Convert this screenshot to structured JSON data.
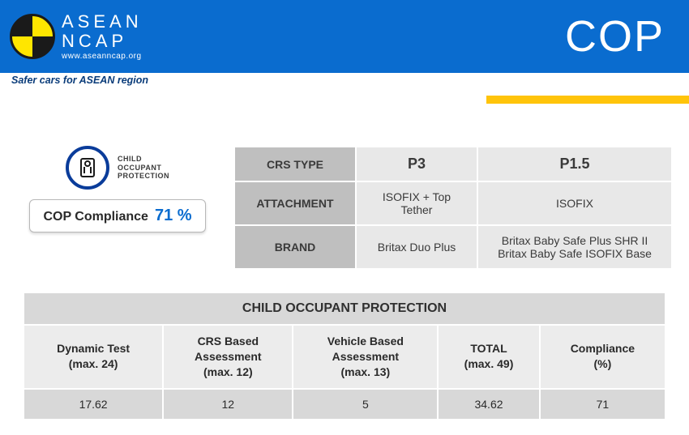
{
  "header": {
    "brand_line1": "ASEAN",
    "brand_line2": "NCAP",
    "url": "www.aseanncap.org",
    "tagline": "Safer cars  for ASEAN region",
    "title": "COP",
    "colors": {
      "header_bg": "#0a6ccf",
      "yellow_strip": "#ffc40a"
    }
  },
  "cop_badge": {
    "icon_label_l1": "CHILD",
    "icon_label_l2": "OCCUPANT",
    "icon_label_l3": "PROTECTION",
    "compliance_label": "COP Compliance",
    "compliance_value": "71 %"
  },
  "crs_table": {
    "rows": [
      {
        "label": "CRS TYPE",
        "c1": "P3",
        "c2": "P1.5",
        "strong": true
      },
      {
        "label": "ATTACHMENT",
        "c1": "ISOFIX + Top Tether",
        "c2": "ISOFIX",
        "strong": false
      },
      {
        "label": "BRAND",
        "c1": "Britax Duo Plus",
        "c2": "Britax Baby Safe Plus SHR II\nBritax Baby Safe ISOFIX Base",
        "strong": false
      }
    ],
    "colors": {
      "rowhdr_bg": "#bfbfbf",
      "cell_bg": "#e8e8e8"
    }
  },
  "bottom_table": {
    "title": "CHILD OCCUPANT PROTECTION",
    "columns": [
      "Dynamic Test\n(max. 24)",
      "CRS Based\nAssessment\n(max. 12)",
      "Vehicle Based\nAssessment\n(max. 13)",
      "TOTAL\n(max. 49)",
      "Compliance\n(%)"
    ],
    "row": [
      "17.62",
      "12",
      "5",
      "34.62",
      "71"
    ],
    "colors": {
      "title_bg": "#d8d8d8",
      "colhdr_bg": "#ececec",
      "data_bg": "#d8d8d8"
    }
  }
}
